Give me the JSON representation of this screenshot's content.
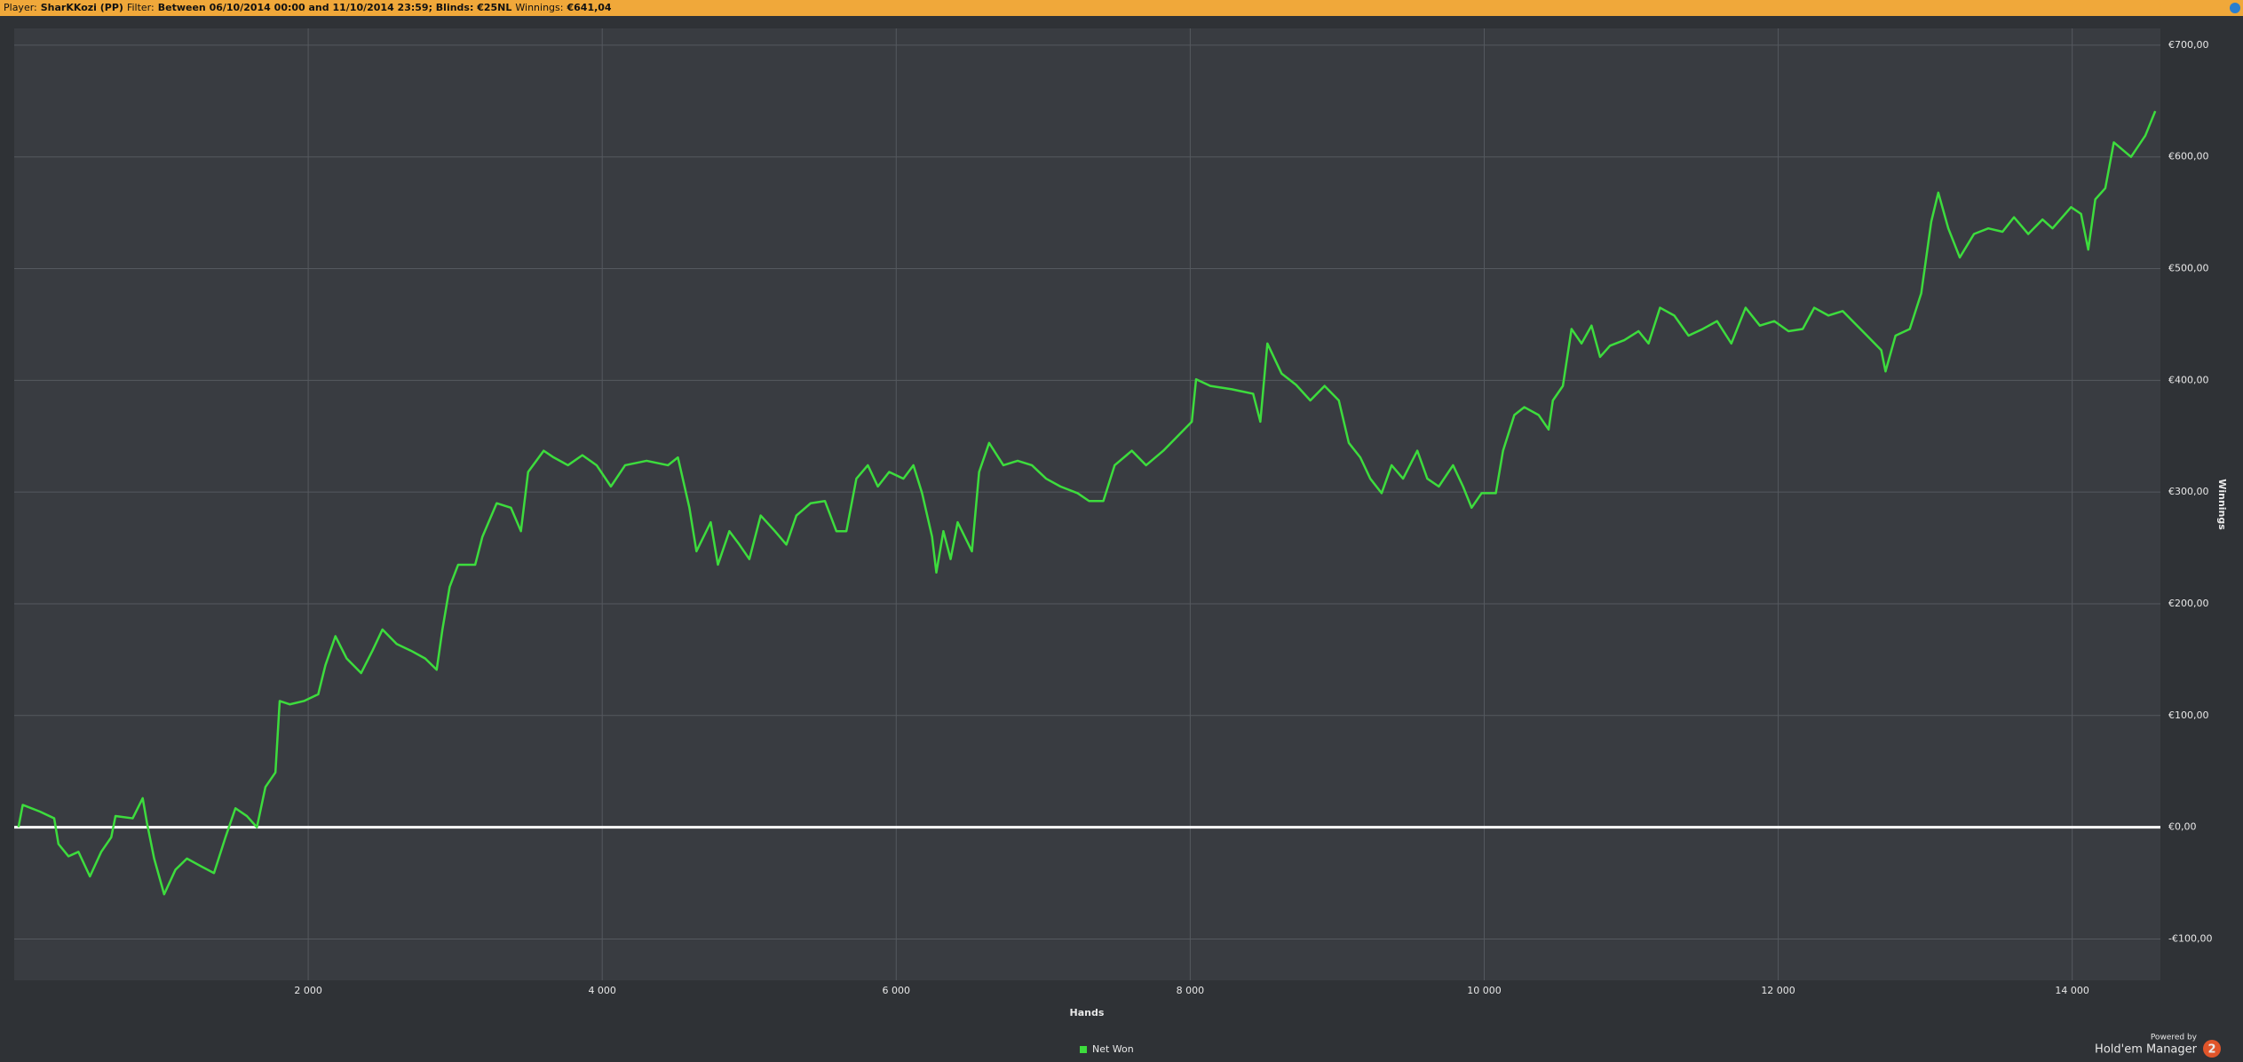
{
  "header": {
    "items": [
      {
        "label": "Player:",
        "value": "SharKKozi (PP)"
      },
      {
        "label": "Filter:",
        "value": "Between 06/10/2014 00:00 and 11/10/2014 23:59; Blinds: €25NL"
      },
      {
        "label": "Winnings:",
        "value": "€641,04"
      }
    ]
  },
  "chart_data": {
    "type": "line",
    "xlabel": "Hands",
    "ylabel": "Winnings",
    "xlim": [
      0,
      14600
    ],
    "ylim": [
      -137,
      715
    ],
    "xticks": [
      {
        "value": 2000,
        "label": "2 000"
      },
      {
        "value": 4000,
        "label": "4 000"
      },
      {
        "value": 6000,
        "label": "6 000"
      },
      {
        "value": 8000,
        "label": "8 000"
      },
      {
        "value": 10000,
        "label": "10 000"
      },
      {
        "value": 12000,
        "label": "12 000"
      },
      {
        "value": 14000,
        "label": "14 000"
      }
    ],
    "yticks": [
      {
        "value": -100,
        "label": "-€100,00"
      },
      {
        "value": 0,
        "label": "€0,00"
      },
      {
        "value": 100,
        "label": "€100,00"
      },
      {
        "value": 200,
        "label": "€200,00"
      },
      {
        "value": 300,
        "label": "€300,00"
      },
      {
        "value": 400,
        "label": "€400,00"
      },
      {
        "value": 500,
        "label": "€500,00"
      },
      {
        "value": 600,
        "label": "€600,00"
      },
      {
        "value": 700,
        "label": "€700,00"
      }
    ],
    "grid": true,
    "legend": "bottom",
    "x": [
      29,
      58,
      175,
      272,
      301,
      369,
      437,
      515,
      592,
      660,
      689,
      806,
      874,
      903,
      952,
      1020,
      1097,
      1175,
      1272,
      1359,
      1437,
      1505,
      1583,
      1651,
      1709,
      1777,
      1806,
      1874,
      1971,
      2068,
      2117,
      2185,
      2262,
      2360,
      2437,
      2505,
      2602,
      2699,
      2796,
      2874,
      2913,
      2962,
      3020,
      3136,
      3185,
      3282,
      3379,
      3447,
      3496,
      3602,
      3670,
      3767,
      3865,
      3962,
      4059,
      4156,
      4302,
      4447,
      4515,
      4593,
      4641,
      4738,
      4787,
      4865,
      4933,
      5001,
      5078,
      5175,
      5253,
      5321,
      5418,
      5515,
      5593,
      5661,
      5729,
      5807,
      5875,
      5952,
      6049,
      6117,
      6176,
      6244,
      6273,
      6321,
      6370,
      6418,
      6515,
      6564,
      6632,
      6729,
      6826,
      6923,
      7020,
      7117,
      7234,
      7312,
      7409,
      7486,
      7603,
      7700,
      7817,
      7914,
      8011,
      8040,
      8137,
      8283,
      8428,
      8477,
      8525,
      8622,
      8720,
      8817,
      8914,
      9011,
      9079,
      9157,
      9225,
      9302,
      9370,
      9448,
      9545,
      9613,
      9691,
      9788,
      9856,
      9914,
      9982,
      10079,
      10128,
      10205,
      10273,
      10370,
      10438,
      10467,
      10535,
      10594,
      10662,
      10730,
      10788,
      10856,
      10953,
      11050,
      11118,
      11196,
      11293,
      11390,
      11487,
      11584,
      11681,
      11778,
      11875,
      11973,
      12070,
      12167,
      12245,
      12342,
      12439,
      12536,
      12604,
      12701,
      12730,
      12798,
      12895,
      12973,
      13041,
      13089,
      13157,
      13235,
      13332,
      13429,
      13526,
      13604,
      13701,
      13798,
      13866,
      13992,
      14060,
      14109,
      14157,
      14225,
      14283,
      14400,
      14497,
      14565
    ],
    "series": [
      {
        "name": "Net Won",
        "color": "#3ddc3d",
        "values": [
          0,
          20,
          14,
          8,
          -15,
          -26,
          -22,
          -44,
          -22,
          -9,
          10,
          8,
          26,
          4,
          -28,
          -60,
          -38,
          -28,
          -35,
          -41,
          -9,
          17,
          10,
          0,
          36,
          49,
          113,
          110,
          113,
          119,
          145,
          171,
          151,
          138,
          158,
          177,
          164,
          158,
          151,
          141,
          177,
          215,
          235,
          235,
          260,
          290,
          286,
          265,
          318,
          337,
          331,
          324,
          333,
          324,
          305,
          324,
          328,
          324,
          331,
          286,
          247,
          273,
          235,
          265,
          253,
          240,
          279,
          265,
          253,
          279,
          290,
          292,
          265,
          265,
          312,
          324,
          305,
          318,
          312,
          324,
          299,
          260,
          228,
          265,
          240,
          273,
          247,
          318,
          344,
          324,
          328,
          324,
          312,
          305,
          299,
          292,
          292,
          324,
          337,
          324,
          337,
          350,
          363,
          401,
          395,
          392,
          388,
          363,
          433,
          406,
          396,
          382,
          395,
          382,
          344,
          331,
          312,
          299,
          324,
          312,
          337,
          312,
          305,
          324,
          305,
          286,
          299,
          299,
          337,
          369,
          376,
          369,
          356,
          382,
          395,
          446,
          433,
          449,
          421,
          431,
          436,
          444,
          433,
          465,
          458,
          440,
          446,
          453,
          433,
          465,
          449,
          453,
          444,
          446,
          465,
          458,
          462,
          449,
          440,
          427,
          408,
          440,
          446,
          478,
          542,
          568,
          536,
          510,
          531,
          536,
          533,
          546,
          531,
          544,
          536,
          555,
          549,
          517,
          562,
          572,
          613,
          600,
          619,
          641
        ]
      }
    ]
  },
  "branding": {
    "powered": "Powered by",
    "product": "Hold'em Manager",
    "version": "2"
  }
}
